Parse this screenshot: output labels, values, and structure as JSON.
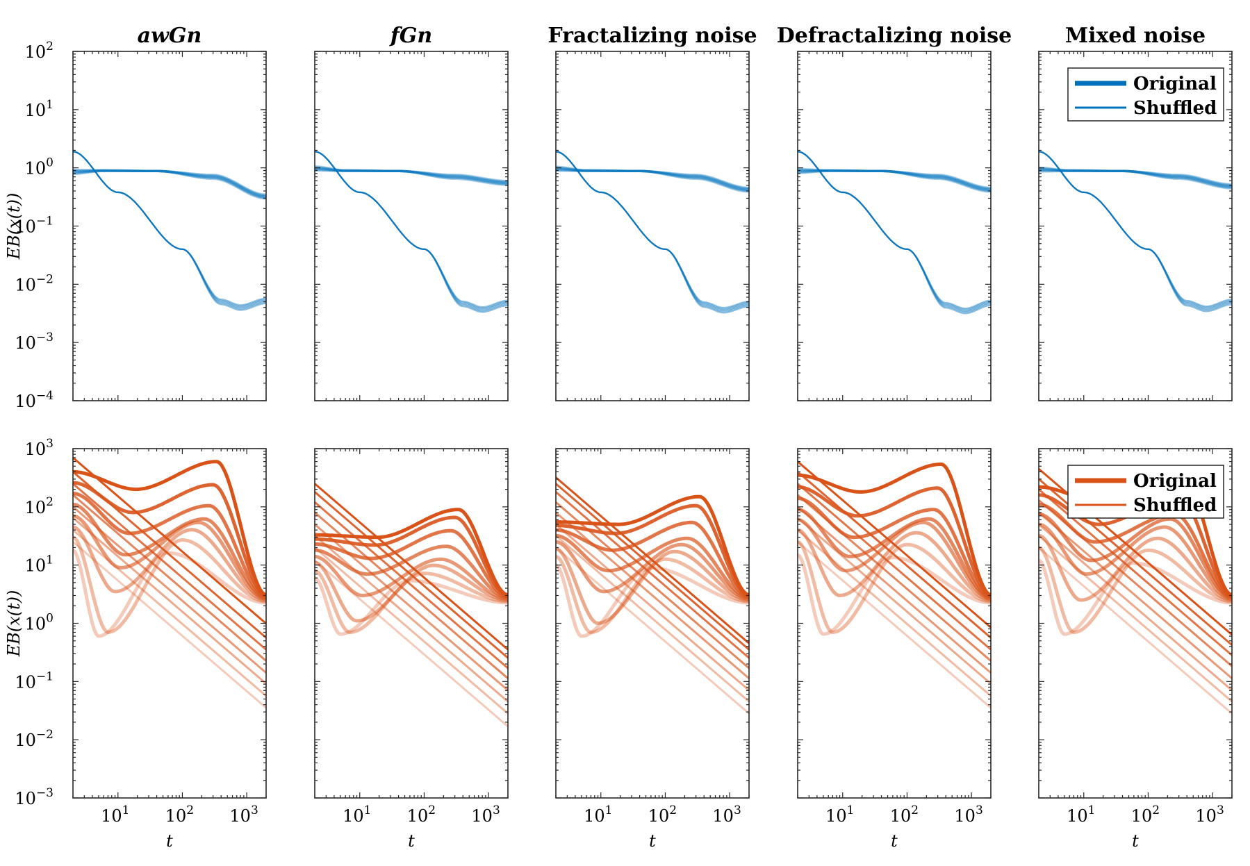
{
  "chart_data": {
    "type": "line",
    "layout": "2 rows x 5 columns of log-log panels",
    "xscale": "log",
    "yscale": "log",
    "xlim": [
      2,
      2000
    ],
    "x_ticks": [
      {
        "base": "10",
        "exp": "1",
        "value": 10
      },
      {
        "base": "10",
        "exp": "2",
        "value": 100
      },
      {
        "base": "10",
        "exp": "3",
        "value": 1000
      }
    ],
    "xlabel": "t",
    "ylabel": "EB(x(t))",
    "columns": [
      {
        "title": "awGn",
        "italic": true
      },
      {
        "title": "fGn",
        "italic": true
      },
      {
        "title": "Fractalizing noise",
        "italic": false
      },
      {
        "title": "Defractalizing noise",
        "italic": false
      },
      {
        "title": "Mixed noise",
        "italic": false
      }
    ],
    "rows": [
      {
        "color": "#0072BD",
        "ylim": [
          0.0001,
          100
        ],
        "y_ticks": [
          {
            "base": "10",
            "exp": "2",
            "value": 100
          },
          {
            "base": "10",
            "exp": "1",
            "value": 10
          },
          {
            "base": "10",
            "exp": "0",
            "value": 1
          },
          {
            "base": "10",
            "exp": "−1",
            "value": 0.1
          },
          {
            "base": "10",
            "exp": "−2",
            "value": 0.01
          },
          {
            "base": "10",
            "exp": "−3",
            "value": 0.001
          },
          {
            "base": "10",
            "exp": "−4",
            "value": 0.0001
          }
        ],
        "legend": {
          "panel": 4,
          "position": "top-right",
          "entries": [
            "Original",
            "Shuffled"
          ]
        },
        "series_description": "Original: plateau near 1 decaying at large t; Shuffled: power-law decay to ~4e-3 then slight rise",
        "panels": [
          {
            "original_end": 0.32,
            "original_start": 0.85,
            "shuffled_min": 0.004,
            "shuffled_end": 0.0052
          },
          {
            "original_end": 0.55,
            "original_start": 0.97,
            "shuffled_min": 0.0037,
            "shuffled_end": 0.0048
          },
          {
            "original_end": 0.42,
            "original_start": 0.96,
            "shuffled_min": 0.0036,
            "shuffled_end": 0.0046
          },
          {
            "original_end": 0.42,
            "original_start": 0.88,
            "shuffled_min": 0.0035,
            "shuffled_end": 0.0048
          },
          {
            "original_end": 0.48,
            "original_start": 0.93,
            "shuffled_min": 0.0038,
            "shuffled_end": 0.005
          }
        ]
      },
      {
        "color": "#D95319",
        "ylim": [
          0.001,
          1000
        ],
        "y_ticks": [
          {
            "base": "10",
            "exp": "3",
            "value": 1000
          },
          {
            "base": "10",
            "exp": "2",
            "value": 100
          },
          {
            "base": "10",
            "exp": "1",
            "value": 10
          },
          {
            "base": "10",
            "exp": "0",
            "value": 1
          },
          {
            "base": "10",
            "exp": "−1",
            "value": 0.1
          },
          {
            "base": "10",
            "exp": "−2",
            "value": 0.01
          },
          {
            "base": "10",
            "exp": "−3",
            "value": 0.001
          }
        ],
        "legend": {
          "panel": 4,
          "position": "top-right",
          "entries": [
            "Original",
            "Shuffled"
          ]
        },
        "series_description": "Eight parameter levels (light to dark). Original: dip then hump converging to ~3 at t=2000; Shuffled: straight power-law decay",
        "panels": [
          {
            "start_values": [
              18,
              30,
              45,
              70,
              110,
              170,
              260,
              400
            ],
            "shuffled_start": [
              25,
              40,
              65,
              100,
              160,
              250,
              400,
              700
            ],
            "dip_min": [
              0.6,
              0.7,
              3.5,
              9,
              15,
              35,
              80,
              200
            ],
            "converge": 3
          },
          {
            "start_values": [
              6,
              8,
              11,
              14,
              18,
              23,
              28,
              33
            ],
            "shuffled_start": [
              12,
              20,
              32,
              50,
              80,
              120,
              180,
              250
            ],
            "dip_min": [
              0.65,
              0.7,
              1.1,
              3,
              7,
              13,
              22,
              30
            ],
            "converge": 3
          },
          {
            "start_values": [
              10,
              14,
              19,
              25,
              32,
              40,
              48,
              55
            ],
            "shuffled_start": [
              20,
              32,
              50,
              80,
              120,
              180,
              250,
              320
            ],
            "dip_min": [
              0.6,
              0.7,
              1.0,
              3.5,
              8,
              18,
              35,
              50
            ],
            "converge": 3
          },
          {
            "start_values": [
              15,
              25,
              40,
              60,
              90,
              140,
              220,
              350
            ],
            "shuffled_start": [
              25,
              40,
              65,
              100,
              160,
              250,
              400,
              600
            ],
            "dip_min": [
              0.65,
              0.7,
              3,
              8,
              14,
              30,
              70,
              180
            ],
            "converge": 3
          },
          {
            "start_values": [
              12,
              20,
              32,
              50,
              75,
              110,
              160,
              220
            ],
            "shuffled_start": [
              20,
              32,
              50,
              80,
              130,
              200,
              300,
              450
            ],
            "dip_min": [
              0.65,
              0.7,
              2.5,
              7,
              12,
              25,
              50,
              120
            ],
            "converge": 3
          }
        ]
      }
    ]
  }
}
